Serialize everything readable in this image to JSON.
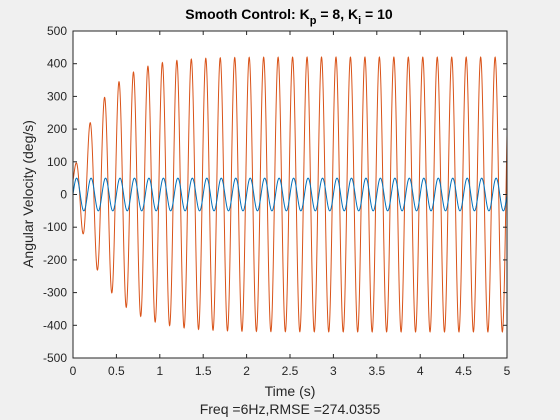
{
  "chart_data": {
    "type": "line",
    "title": {
      "prefix": "Smooth Control: K",
      "sub1": "p",
      "mid": " = 8, K",
      "sub2": "i",
      "suffix": " = 10"
    },
    "xlabel": "Time (s)",
    "ylabel": "Angular Velocity (deg/s)",
    "caption": "Freq =6Hz,RMSE =274.0355",
    "xlim": [
      0,
      5
    ],
    "ylim": [
      -500,
      500
    ],
    "x_ticks": [
      "0",
      "0.5",
      "1",
      "1.5",
      "2",
      "2.5",
      "3",
      "3.5",
      "4",
      "4.5",
      "5"
    ],
    "y_ticks": [
      "-500",
      "-400",
      "-300",
      "-200",
      "-100",
      "0",
      "100",
      "200",
      "300",
      "400",
      "500"
    ],
    "grid": false,
    "legend": "none",
    "series": [
      {
        "color": "#0072bd",
        "form": "sine",
        "frequency_hz": 6,
        "amplitude": 50,
        "phase_deg": 0,
        "t_start": 0,
        "t_end": 5
      },
      {
        "color": "#d95319",
        "form": "damped-start sine",
        "frequency_hz": 6,
        "amplitude_steady": 420,
        "rise_time_constant_s": 0.35,
        "points": [
          {
            "x": 0.05,
            "y": 78
          },
          {
            "x": 0.14,
            "y": -140
          },
          {
            "x": 0.22,
            "y": 193
          },
          {
            "x": 0.31,
            "y": -240
          },
          {
            "x": 0.39,
            "y": 265
          },
          {
            "x": 0.47,
            "y": -305
          },
          {
            "x": 0.56,
            "y": 315
          },
          {
            "x": 0.64,
            "y": -345
          },
          {
            "x": 1.0,
            "y": 400
          },
          {
            "x": 1.5,
            "y": 415
          },
          {
            "x": 2.0,
            "y": 420
          },
          {
            "x": 5.0,
            "y": 420
          }
        ],
        "t_start": 0,
        "t_end": 5
      }
    ]
  }
}
